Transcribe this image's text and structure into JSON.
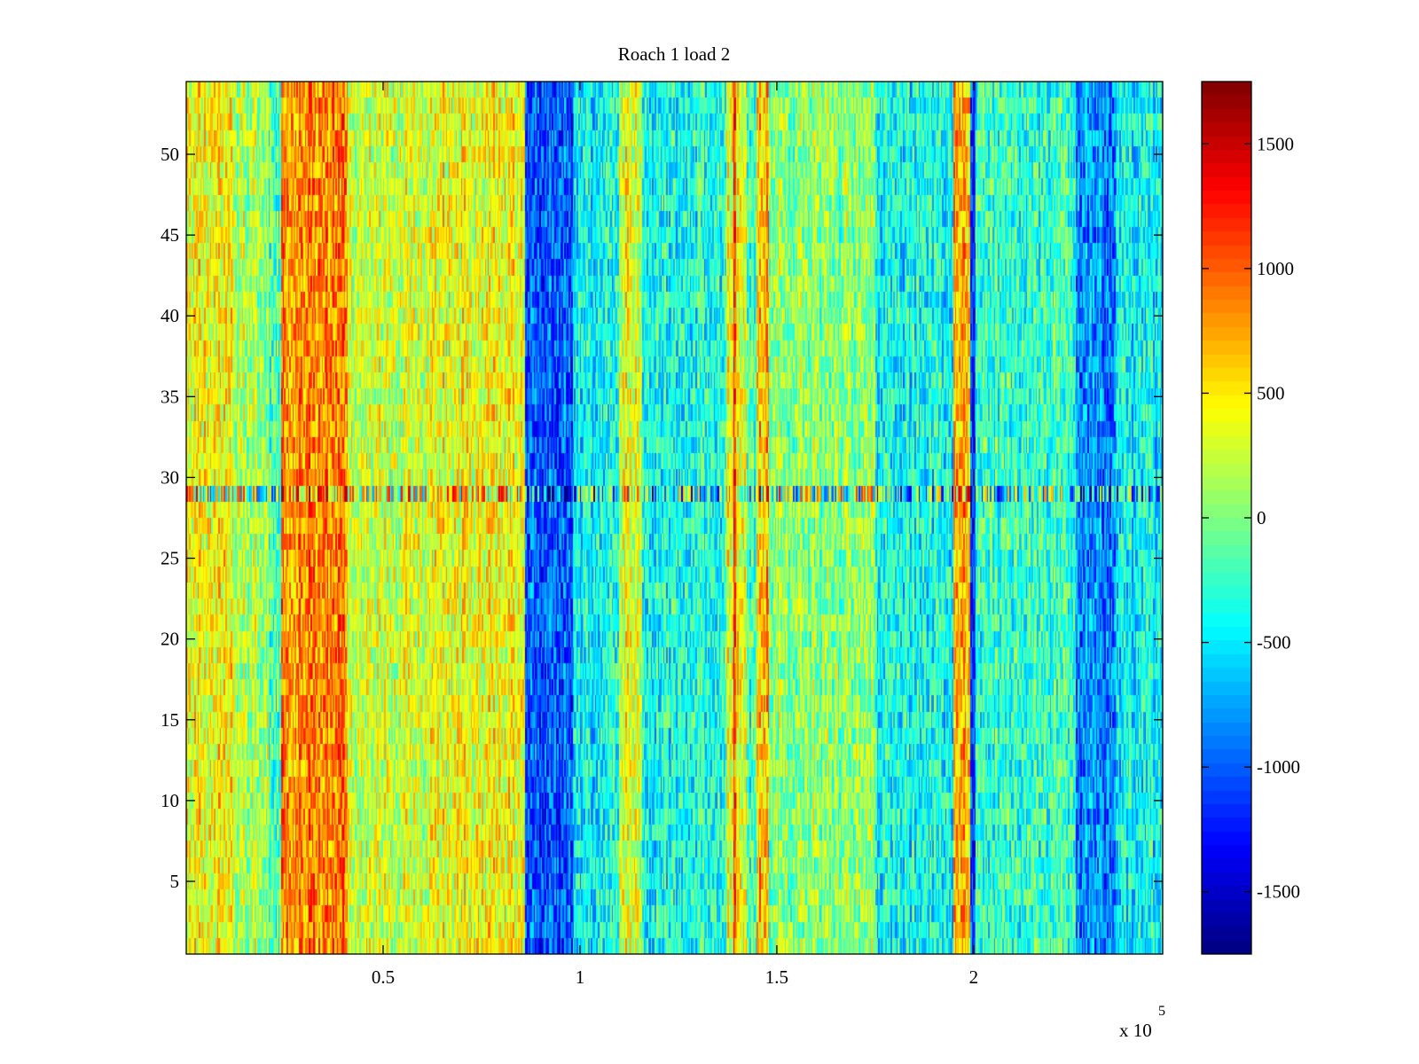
{
  "chart_data": {
    "type": "heatmap",
    "title": "Roach 1 load 2",
    "xlabel": "",
    "ylabel": "",
    "xlim": [
      0,
      248000
    ],
    "ylim": [
      0.5,
      54.5
    ],
    "x_ticks": [
      0.5,
      1,
      1.5,
      2
    ],
    "x_tick_labels": [
      "0.5",
      "1",
      "1.5",
      "2"
    ],
    "x_multiplier": "x 10",
    "x_multiplier_exponent": "5",
    "y_ticks": [
      5,
      10,
      15,
      20,
      25,
      30,
      35,
      40,
      45,
      50
    ],
    "y_tick_labels": [
      "5",
      "10",
      "15",
      "20",
      "25",
      "30",
      "35",
      "40",
      "45",
      "50"
    ],
    "rows": 54,
    "colormap": "jet",
    "colorbar": {
      "limits": [
        -1750,
        1750
      ],
      "ticks": [
        1500,
        1000,
        500,
        0,
        -500,
        -1000,
        -1500
      ],
      "tick_labels": [
        "1500",
        "1000",
        "500",
        "0",
        "-500",
        "-1000",
        "-1500"
      ],
      "placement": "right"
    },
    "column_profile": [
      {
        "x_start": 0,
        "x_end": 12000,
        "value": 450
      },
      {
        "x_start": 12000,
        "x_end": 21000,
        "value": 150
      },
      {
        "x_start": 21000,
        "x_end": 24000,
        "value": -250
      },
      {
        "x_start": 24000,
        "x_end": 41000,
        "value": 850
      },
      {
        "x_start": 41000,
        "x_end": 62000,
        "value": 250
      },
      {
        "x_start": 62000,
        "x_end": 86000,
        "value": 400
      },
      {
        "x_start": 86000,
        "x_end": 98000,
        "value": -1050
      },
      {
        "x_start": 98000,
        "x_end": 110000,
        "value": -450
      },
      {
        "x_start": 110000,
        "x_end": 116000,
        "value": 300
      },
      {
        "x_start": 116000,
        "x_end": 137000,
        "value": -350
      },
      {
        "x_start": 137000,
        "x_end": 138800,
        "value": 300
      },
      {
        "x_start": 138800,
        "x_end": 139600,
        "value": 1200
      },
      {
        "x_start": 139600,
        "x_end": 142500,
        "value": 450
      },
      {
        "x_start": 142500,
        "x_end": 145000,
        "value": -200
      },
      {
        "x_start": 145000,
        "x_end": 148000,
        "value": 650
      },
      {
        "x_start": 148000,
        "x_end": 175000,
        "value": 50
      },
      {
        "x_start": 175000,
        "x_end": 195000,
        "value": -400
      },
      {
        "x_start": 195000,
        "x_end": 199000,
        "value": 700
      },
      {
        "x_start": 199000,
        "x_end": 200500,
        "value": -1200
      },
      {
        "x_start": 200500,
        "x_end": 226000,
        "value": -250
      },
      {
        "x_start": 226000,
        "x_end": 236000,
        "value": -850
      },
      {
        "x_start": 236000,
        "x_end": 248000,
        "value": -450
      }
    ],
    "noise_amplitude": 450,
    "row_anomaly": {
      "row": 29,
      "noise_amplitude": 1100
    }
  }
}
